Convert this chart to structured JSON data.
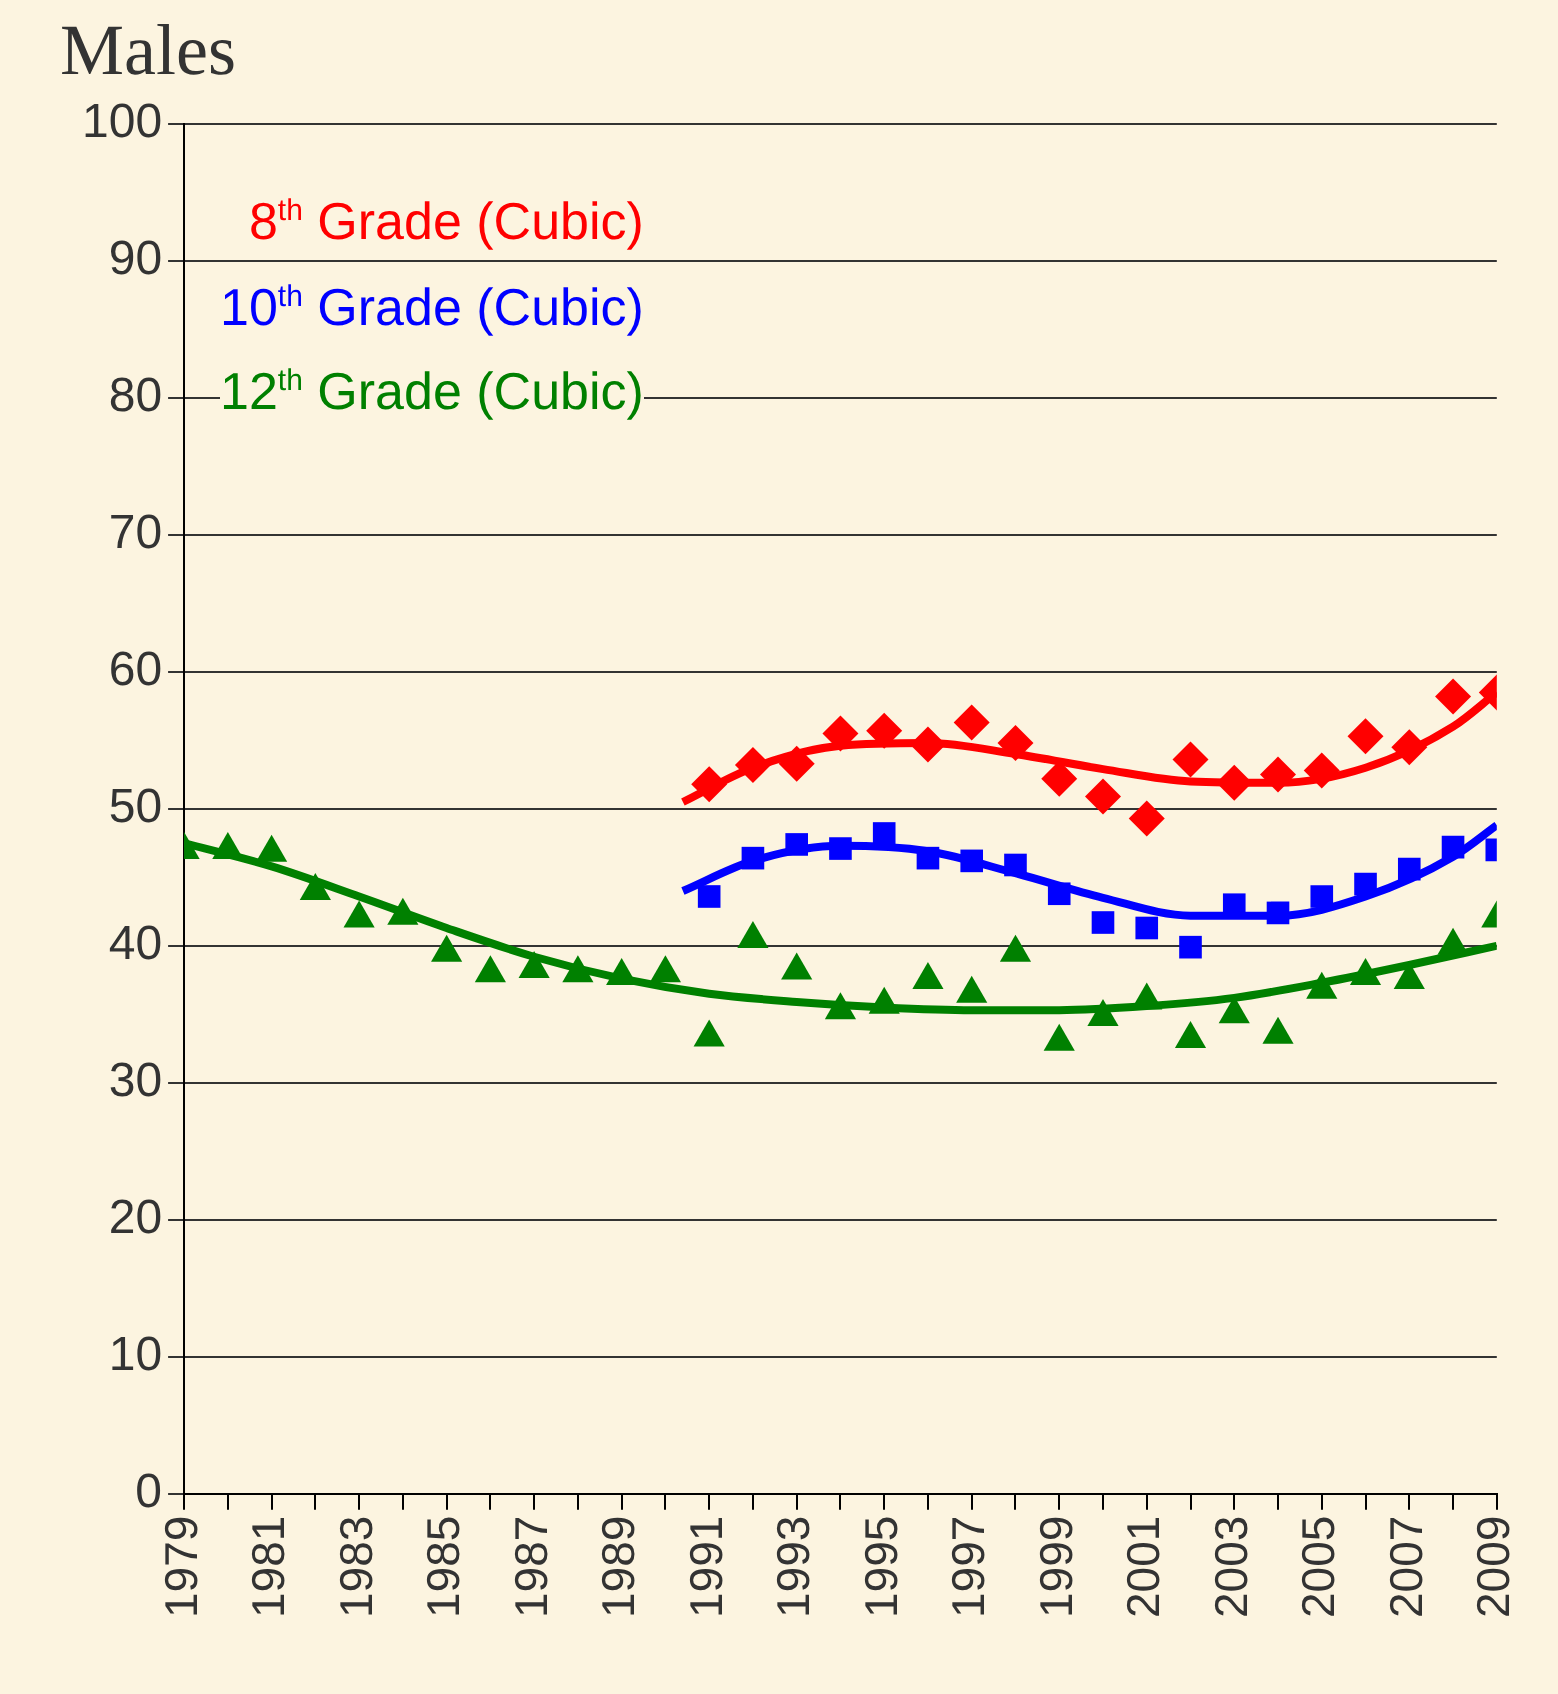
{
  "chart_data": {
    "type": "scatter",
    "title": "Males",
    "xlim": [
      1979,
      2009
    ],
    "xticks": [
      1979,
      {
        "value": 1980,
        "label": null
      },
      1981,
      {
        "value": 1982,
        "label": null
      },
      1983,
      {
        "value": 1984,
        "label": null
      },
      1985,
      {
        "value": 1986,
        "label": null
      },
      1987,
      {
        "value": 1988,
        "label": null
      },
      1989,
      {
        "value": 1990,
        "label": null
      },
      1991,
      {
        "value": 1992,
        "label": null
      },
      1993,
      {
        "value": 1994,
        "label": null
      },
      1995,
      {
        "value": 1996,
        "label": null
      },
      1997,
      {
        "value": 1998,
        "label": null
      },
      1999,
      {
        "value": 2000,
        "label": null
      },
      2001,
      {
        "value": 2002,
        "label": null
      },
      2003,
      {
        "value": 2004,
        "label": null
      },
      2005,
      {
        "value": 2006,
        "label": null
      },
      2007,
      {
        "value": 2008,
        "label": null
      },
      2009
    ],
    "ylim": [
      0,
      100
    ],
    "yticks": [
      0,
      10,
      20,
      30,
      40,
      50,
      60,
      70,
      80,
      90,
      100
    ],
    "grid": "y",
    "legend": "top left",
    "series": [
      {
        "type": "scatter",
        "marker": "diamond",
        "color": "#ff0000",
        "x": [
          1991,
          1992,
          1993,
          1994,
          1995,
          1996,
          1997,
          1998,
          1999,
          2000,
          2001,
          2002,
          2003,
          2004,
          2005,
          2006,
          2007,
          2008,
          2009
        ],
        "values": [
          51.8,
          53.2,
          53.3,
          55.5,
          55.7,
          54.7,
          56.3,
          54.8,
          52.2,
          50.9,
          49.3,
          53.6,
          51.9,
          52.5,
          52.8,
          55.3,
          54.5,
          58.2,
          58.5
        ]
      },
      {
        "type": "scatter",
        "marker": "square",
        "color": "#0000ff",
        "x": [
          1991,
          1992,
          1993,
          1994,
          1995,
          1996,
          1997,
          1998,
          1999,
          2000,
          2001,
          2002,
          2003,
          2004,
          2005,
          2006,
          2007,
          2008,
          2009
        ],
        "values": [
          43.6,
          46.4,
          47.4,
          47.1,
          48.2,
          46.4,
          46.2,
          45.9,
          43.8,
          41.7,
          41.3,
          39.9,
          43.0,
          42.4,
          43.6,
          44.5,
          45.6,
          47.2,
          47.0
        ]
      },
      {
        "type": "scatter",
        "marker": "triangle",
        "color": "#008000",
        "x": [
          1979,
          1980,
          1981,
          1982,
          1983,
          1984,
          1985,
          1986,
          1987,
          1988,
          1989,
          1990,
          1991,
          1992,
          1993,
          1994,
          1995,
          1996,
          1997,
          1998,
          1999,
          2000,
          2001,
          2002,
          2003,
          2004,
          2005,
          2006,
          2007,
          2008,
          2009
        ],
        "values": [
          47,
          47,
          46.8,
          44,
          42,
          42.2,
          39.5,
          38,
          38.3,
          38,
          37.8,
          38,
          33.3,
          40.5,
          38.2,
          35.3,
          35.7,
          37.5,
          36.5,
          39.5,
          33,
          34.8,
          36,
          33.2,
          35,
          33.5,
          36.8,
          37.8,
          37.5,
          40,
          42
        ]
      },
      {
        "type": "line",
        "name": "8$^{th}$ Grade (Cubic)",
        "marker": "none",
        "color": "#ff0000",
        "x": [
          1990.4,
          1992,
          1994,
          1996,
          1998,
          2000,
          2002,
          2004,
          2006,
          2008,
          2009
        ],
        "values": [
          50.5,
          53,
          54.6,
          54.8,
          54,
          52.9,
          52,
          51.9,
          53,
          56,
          58.5
        ]
      },
      {
        "type": "line",
        "name": "10$^{th}$ Grade (Cubic)",
        "marker": "none",
        "color": "#0000ff",
        "x": [
          1990.4,
          1992,
          1994,
          1996,
          1998,
          2000,
          2002,
          2004,
          2006,
          2008,
          2009
        ],
        "values": [
          44,
          46.2,
          47.3,
          46.9,
          45.3,
          43.5,
          42.2,
          42.2,
          43.6,
          46.5,
          48.8
        ]
      },
      {
        "type": "line",
        "name": "12$^{th}$ Grade (Cubic)",
        "marker": "none",
        "color": "#008000",
        "x": [
          1979,
          1981,
          1983,
          1985,
          1987,
          1989,
          1991,
          1993,
          1995,
          1997,
          1999,
          2001,
          2003,
          2005,
          2007,
          2009
        ],
        "values": [
          47.5,
          45.8,
          43.6,
          41.3,
          39.2,
          37.6,
          36.5,
          35.9,
          35.5,
          35.3,
          35.3,
          35.6,
          36.2,
          37.3,
          38.6,
          40
        ]
      }
    ]
  }
}
